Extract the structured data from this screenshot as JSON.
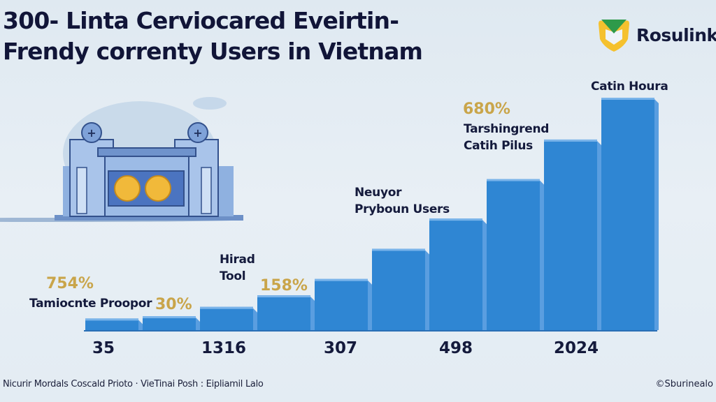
{
  "title": {
    "line1": "300- Linta Cerviocared Eveirtin-",
    "line2": "Frendy correnty Users in Vietnam"
  },
  "logo": {
    "text": "Rosulink",
    "colors": {
      "shield": "#f5c12e",
      "top": "#2e9a4a"
    }
  },
  "colors": {
    "bar": "#2f86d3",
    "bar_side": "#5a9ee0",
    "bar_top": "#7ab4ea",
    "percent": "#c9a54a",
    "text": "#141a3c"
  },
  "chart_data": {
    "type": "bar",
    "title": "",
    "xlabel": "",
    "ylabel": "",
    "grid": false,
    "legend": "none",
    "tick_labels": [
      "35",
      "1316",
      "307",
      "498",
      "2024"
    ],
    "relative_heights_percent": [
      5,
      6,
      10,
      15,
      22,
      35,
      48,
      65,
      82,
      100
    ],
    "annotations": [
      {
        "percent": "754%",
        "label": "Tamiocnte Proopor"
      },
      {
        "percent": "30%"
      },
      {
        "label_lines": [
          "Hirad",
          "Tool"
        ]
      },
      {
        "percent": "158%"
      },
      {
        "label_lines": [
          "Neuyor",
          "Prybоun Users"
        ]
      },
      {
        "percent": "680%",
        "label_lines": [
          "Tarshingrend",
          "Catih Pilus"
        ]
      },
      {
        "label": "Catin Houra"
      }
    ]
  },
  "footer": {
    "source": "Nicurir Mordals Coscald Prioto · VieTinai Posh : Eipliamil Lalo",
    "credit": "©Sburinealo"
  }
}
